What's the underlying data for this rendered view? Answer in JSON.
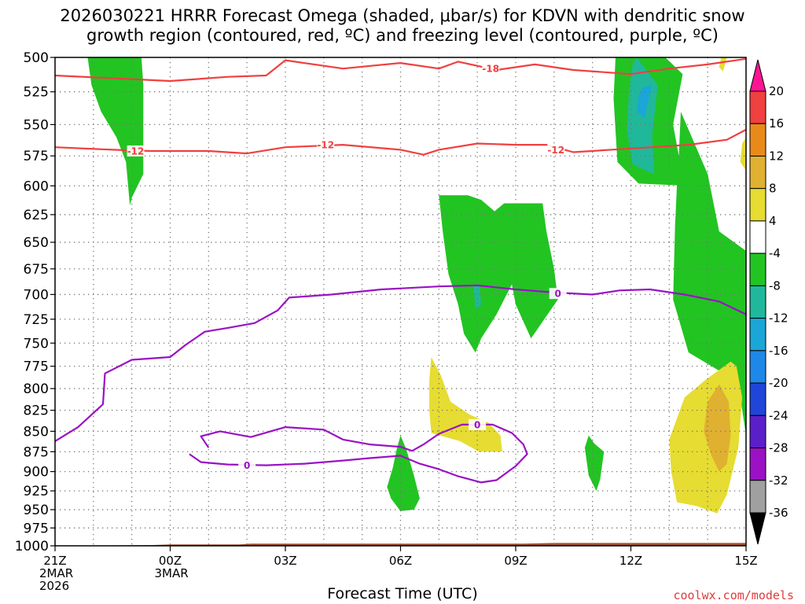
{
  "chart_data": {
    "type": "time-height cross section",
    "title_line1": "2026030221 HRRR Forecast Omega (shaded, μbar/s) for KDVN with dendritic snow",
    "title_line2": "growth region (contoured, red, ºC) and freezing level (contoured, purple, ºC)",
    "xlabel": "Forecast Time (UTC)",
    "credit": "coolwx.com/models",
    "y_axis": {
      "label_values": [
        "500",
        "525",
        "550",
        "575",
        "600",
        "625",
        "650",
        "675",
        "700",
        "725",
        "750",
        "775",
        "800",
        "825",
        "850",
        "875",
        "900",
        "925",
        "950",
        "975",
        "1000"
      ],
      "pressure_min": 500,
      "pressure_max": 1000,
      "reference_levels": [
        500,
        525,
        550,
        575,
        600,
        625,
        650,
        675,
        700,
        725,
        750,
        775,
        800,
        825,
        850,
        875,
        900,
        925,
        950,
        975,
        1000
      ]
    },
    "x_axis": {
      "hour_range": [
        0,
        18
      ],
      "ticks": [
        {
          "hour": 0,
          "label": "21Z",
          "line2": "2MAR",
          "line3": "2026"
        },
        {
          "hour": 3,
          "label": "00Z",
          "line2": "3MAR",
          "line3": ""
        },
        {
          "hour": 6,
          "label": "03Z",
          "line2": "",
          "line3": ""
        },
        {
          "hour": 9,
          "label": "06Z",
          "line2": "",
          "line3": ""
        },
        {
          "hour": 12,
          "label": "09Z",
          "line2": "",
          "line3": ""
        },
        {
          "hour": 15,
          "label": "12Z",
          "line2": "",
          "line3": ""
        },
        {
          "hour": 18,
          "label": "15Z",
          "line2": "",
          "line3": ""
        }
      ]
    },
    "colorbar": {
      "levels": [
        "20",
        "16",
        "12",
        "8",
        "4",
        "-4",
        "-8",
        "-12",
        "-16",
        "-20",
        "-24",
        "-28",
        "-32",
        "-36"
      ],
      "colors_top_to_bottom": [
        "#ff1493",
        "#f04040",
        "#e88a1a",
        "#e0b030",
        "#e6dc32",
        "#ffffff",
        "#22c422",
        "#20b89a",
        "#1aa6d6",
        "#1e88e8",
        "#1f46d9",
        "#5b1fc9",
        "#9a12c4",
        "#a0a0a0",
        "#000000"
      ]
    },
    "omega_regions": [
      {
        "color": "#22c422",
        "points": [
          [
            0.85,
            500
          ],
          [
            2.25,
            500
          ],
          [
            2.3,
            520
          ],
          [
            2.3,
            560
          ],
          [
            2.3,
            590
          ],
          [
            2.0,
            610
          ],
          [
            1.95,
            617
          ],
          [
            1.85,
            580
          ],
          [
            1.6,
            560
          ],
          [
            1.2,
            540
          ],
          [
            0.95,
            520
          ]
        ]
      },
      {
        "color": "#22c422",
        "points": [
          [
            14.6,
            500
          ],
          [
            15.9,
            500
          ],
          [
            16.35,
            512
          ],
          [
            16.1,
            550
          ],
          [
            16.25,
            575
          ],
          [
            16.6,
            580
          ],
          [
            16.9,
            590
          ],
          [
            16.7,
            620
          ],
          [
            16.5,
            600
          ],
          [
            15.2,
            598
          ],
          [
            14.65,
            580
          ],
          [
            14.6,
            555
          ],
          [
            14.55,
            530
          ]
        ]
      },
      {
        "color": "#20b89a",
        "points": [
          [
            15.05,
            505
          ],
          [
            15.15,
            500
          ],
          [
            15.7,
            520
          ],
          [
            15.55,
            560
          ],
          [
            15.6,
            580
          ],
          [
            15.6,
            590
          ],
          [
            15.05,
            582
          ],
          [
            14.9,
            555
          ],
          [
            14.95,
            525
          ]
        ]
      },
      {
        "color": "#1aa6d6",
        "points": [
          [
            15.3,
            522
          ],
          [
            15.55,
            520
          ],
          [
            15.35,
            545
          ],
          [
            15.15,
            540
          ],
          [
            15.2,
            528
          ]
        ]
      },
      {
        "color": "#22c422",
        "points": [
          [
            16.3,
            540
          ],
          [
            17.0,
            590
          ],
          [
            17.3,
            640
          ],
          [
            18.0,
            658
          ],
          [
            18.0,
            855
          ],
          [
            17.85,
            810
          ],
          [
            17.3,
            780
          ],
          [
            16.5,
            760
          ],
          [
            16.1,
            705
          ],
          [
            16.15,
            635
          ],
          [
            16.2,
            600
          ],
          [
            16.25,
            575
          ]
        ]
      },
      {
        "color": "#22c422",
        "points": [
          [
            10.0,
            608
          ],
          [
            10.75,
            608
          ],
          [
            11.1,
            612
          ],
          [
            11.45,
            622
          ],
          [
            11.7,
            615
          ],
          [
            12.7,
            615
          ],
          [
            12.8,
            640
          ],
          [
            13.0,
            675
          ],
          [
            13.1,
            705
          ],
          [
            12.4,
            745
          ],
          [
            12.0,
            710
          ],
          [
            11.9,
            690
          ],
          [
            11.5,
            720
          ],
          [
            11.1,
            745
          ],
          [
            10.95,
            760
          ],
          [
            10.65,
            740
          ],
          [
            10.5,
            710
          ],
          [
            10.25,
            680
          ],
          [
            10.1,
            640
          ]
        ]
      },
      {
        "color": "#20b89a",
        "points": [
          [
            10.9,
            690
          ],
          [
            11.05,
            690
          ],
          [
            11.1,
            710
          ],
          [
            10.95,
            715
          ]
        ]
      },
      {
        "color": "#e6dc32",
        "points": [
          [
            9.8,
            765
          ],
          [
            10.05,
            785
          ],
          [
            10.3,
            815
          ],
          [
            10.8,
            830
          ],
          [
            11.3,
            840
          ],
          [
            11.6,
            855
          ],
          [
            11.65,
            875
          ],
          [
            11.05,
            875
          ],
          [
            10.55,
            862
          ],
          [
            9.8,
            852
          ],
          [
            9.75,
            825
          ],
          [
            9.75,
            790
          ]
        ]
      },
      {
        "color": "#22c422",
        "points": [
          [
            9.0,
            855
          ],
          [
            9.15,
            872
          ],
          [
            9.35,
            905
          ],
          [
            9.5,
            935
          ],
          [
            9.35,
            950
          ],
          [
            9.0,
            952
          ],
          [
            8.75,
            935
          ],
          [
            8.65,
            920
          ],
          [
            8.8,
            895
          ],
          [
            8.9,
            872
          ]
        ]
      },
      {
        "color": "#22c422",
        "points": [
          [
            13.9,
            855
          ],
          [
            14.05,
            865
          ],
          [
            14.3,
            875
          ],
          [
            14.2,
            910
          ],
          [
            14.1,
            925
          ],
          [
            13.9,
            905
          ],
          [
            13.8,
            870
          ]
        ]
      },
      {
        "color": "#e6dc32",
        "points": [
          [
            16.95,
            790
          ],
          [
            17.6,
            770
          ],
          [
            17.75,
            775
          ],
          [
            17.9,
            810
          ],
          [
            17.8,
            870
          ],
          [
            17.5,
            930
          ],
          [
            17.25,
            955
          ],
          [
            16.7,
            945
          ],
          [
            16.2,
            940
          ],
          [
            16.05,
            900
          ],
          [
            16.0,
            860
          ],
          [
            16.4,
            810
          ]
        ]
      },
      {
        "color": "#e0b030",
        "points": [
          [
            17.0,
            815
          ],
          [
            17.3,
            795
          ],
          [
            17.55,
            815
          ],
          [
            17.6,
            855
          ],
          [
            17.5,
            890
          ],
          [
            17.3,
            900
          ],
          [
            17.1,
            880
          ],
          [
            16.9,
            850
          ]
        ]
      },
      {
        "color": "#e6dc32",
        "points": [
          [
            17.35,
            500
          ],
          [
            17.5,
            500
          ],
          [
            17.4,
            510
          ],
          [
            17.3,
            507
          ]
        ]
      },
      {
        "color": "#e6dc32",
        "points": [
          [
            17.9,
            565
          ],
          [
            18.0,
            560
          ],
          [
            18.0,
            587
          ],
          [
            17.85,
            580
          ]
        ]
      }
    ],
    "contours": [
      {
        "type": "dendritic",
        "value": "-18",
        "color": "#f04040",
        "points": [
          [
            0,
            513
          ],
          [
            1.5,
            515
          ],
          [
            3,
            517
          ],
          [
            4.5,
            514
          ],
          [
            5.5,
            513
          ],
          [
            6,
            502
          ],
          [
            7.5,
            508
          ],
          [
            9,
            504
          ],
          [
            10,
            508
          ],
          [
            10.5,
            503
          ],
          [
            11.5,
            509
          ],
          [
            12.5,
            505
          ],
          [
            13.5,
            509
          ],
          [
            15,
            512
          ],
          [
            16,
            508
          ],
          [
            17,
            505
          ],
          [
            18,
            501
          ]
        ],
        "labels": [
          {
            "x": 11.35,
            "p": 508
          }
        ]
      },
      {
        "type": "dendritic",
        "value": "-12",
        "color": "#f04040",
        "points": [
          [
            0,
            568
          ],
          [
            1.5,
            570
          ],
          [
            2.5,
            571
          ],
          [
            4,
            571
          ],
          [
            5,
            573
          ],
          [
            6,
            568
          ],
          [
            7.5,
            566
          ],
          [
            9,
            570
          ],
          [
            9.6,
            574
          ],
          [
            10,
            570
          ],
          [
            11,
            565
          ],
          [
            12,
            566
          ],
          [
            12.8,
            566
          ],
          [
            13.5,
            572
          ],
          [
            15,
            569
          ],
          [
            16.5,
            566
          ],
          [
            17.5,
            562
          ],
          [
            18,
            554
          ]
        ],
        "labels": [
          {
            "x": 2.1,
            "p": 571
          },
          {
            "x": 7.05,
            "p": 566
          },
          {
            "x": 13.05,
            "p": 570
          }
        ]
      },
      {
        "type": "freezing",
        "value": "0",
        "color": "#9a12c4",
        "points": [
          [
            0,
            862
          ],
          [
            0.6,
            845
          ],
          [
            1.25,
            818
          ],
          [
            1.3,
            783
          ],
          [
            2.0,
            768
          ],
          [
            3.0,
            765
          ],
          [
            3.4,
            752
          ],
          [
            3.9,
            738
          ],
          [
            4.5,
            734
          ],
          [
            5.2,
            729
          ],
          [
            5.8,
            716
          ],
          [
            6.1,
            703
          ],
          [
            6.5,
            702
          ],
          [
            7.2,
            700
          ],
          [
            8.5,
            695
          ],
          [
            10,
            692
          ],
          [
            11,
            691
          ],
          [
            12,
            695
          ],
          [
            13,
            698
          ],
          [
            14,
            700
          ],
          [
            14.7,
            696
          ],
          [
            15.5,
            695
          ],
          [
            16.4,
            700
          ],
          [
            17.3,
            707
          ],
          [
            18,
            720
          ]
        ],
        "labels": [
          {
            "x": 13.1,
            "p": 699
          }
        ]
      },
      {
        "type": "freezing",
        "value": "0",
        "color": "#9a12c4",
        "points": [
          [
            4.0,
            870
          ],
          [
            3.8,
            856
          ],
          [
            4.3,
            850
          ],
          [
            5.1,
            857
          ],
          [
            6,
            845
          ],
          [
            7,
            848
          ],
          [
            7.5,
            860
          ],
          [
            8.2,
            866
          ],
          [
            9,
            869
          ],
          [
            9.3,
            874
          ],
          [
            9.6,
            866
          ],
          [
            10.0,
            853
          ],
          [
            10.6,
            842
          ],
          [
            11.4,
            842
          ],
          [
            11.9,
            852
          ],
          [
            12.2,
            866
          ],
          [
            12.3,
            878
          ],
          [
            12.0,
            893
          ],
          [
            11.5,
            911
          ],
          [
            11.1,
            914
          ],
          [
            10.5,
            906
          ],
          [
            10.0,
            897
          ],
          [
            9.5,
            890
          ],
          [
            9.0,
            880
          ],
          [
            8.2,
            883
          ],
          [
            7.5,
            886
          ],
          [
            6.5,
            890
          ],
          [
            5.5,
            892
          ],
          [
            4.5,
            891
          ],
          [
            3.8,
            888
          ],
          [
            3.5,
            878
          ]
        ],
        "labels": [
          {
            "x": 5.0,
            "p": 892
          },
          {
            "x": 11.0,
            "p": 842
          }
        ]
      }
    ],
    "ground": {
      "color": "#a0522d",
      "points": [
        [
          0,
          1000
        ],
        [
          2.5,
          999
        ],
        [
          3.0,
          998
        ],
        [
          4.8,
          998
        ],
        [
          5.1,
          997
        ],
        [
          8.5,
          997
        ],
        [
          12.2,
          997
        ],
        [
          13,
          996
        ],
        [
          15,
          996
        ],
        [
          18,
          996
        ]
      ]
    }
  }
}
